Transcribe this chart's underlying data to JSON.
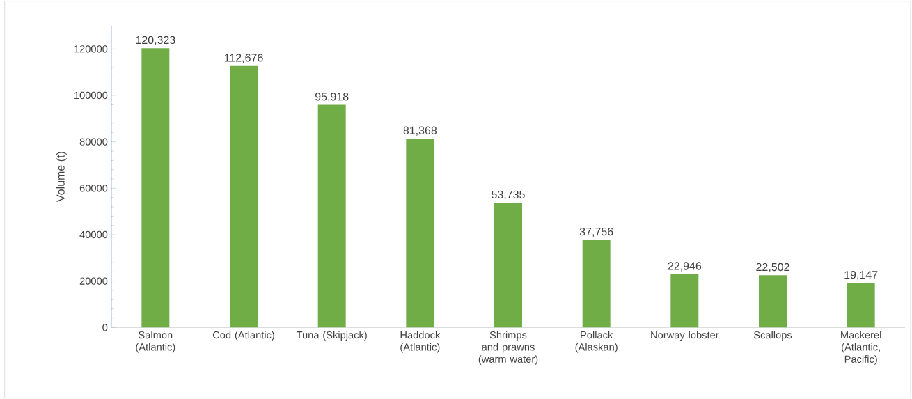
{
  "chart_data": {
    "type": "bar",
    "ylabel": "Volume (t)",
    "categories": [
      "Salmon (Atlantic)",
      "Cod (Atlantic)",
      "Tuna (Skipjack)",
      "Haddock (Atlantic)",
      "Shrimps and prawns (warm water)",
      "Pollack (Alaskan)",
      "Norway lobster",
      "Scallops",
      "Mackerel (Atlantic, Pacific)"
    ],
    "values": [
      120323,
      112676,
      95918,
      81368,
      53735,
      37756,
      22946,
      22502,
      19147
    ],
    "value_labels": [
      "120,323",
      "112,676",
      "95,918",
      "81,368",
      "53,735",
      "37,756",
      "22,946",
      "22,502",
      "19,147"
    ],
    "color": "#70ad47",
    "ylim": [
      0,
      130000
    ],
    "yticks": [
      0,
      20000,
      40000,
      60000,
      80000,
      100000,
      120000
    ],
    "grid": false
  }
}
